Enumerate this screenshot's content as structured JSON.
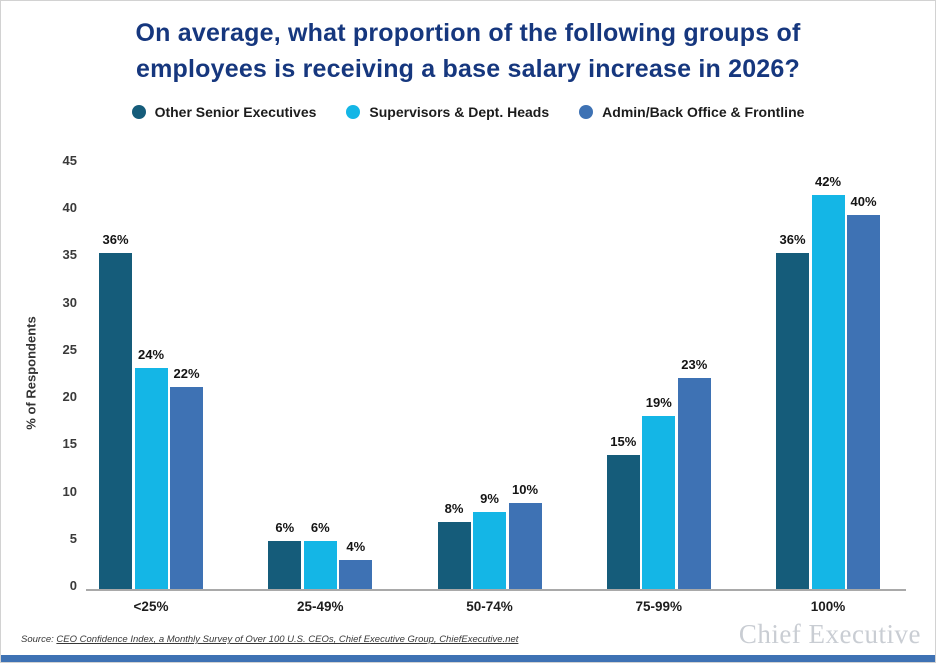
{
  "page": {
    "title_line1": "On average, what proportion of the following groups of",
    "title_line2": "employees is receiving a base salary increase in 2026?"
  },
  "chart_data": {
    "type": "bar",
    "title": "On average, what proportion of the following groups of employees is receiving a base salary increase in 2026?",
    "categories": [
      "<25%",
      "25-49%",
      "50-74%",
      "75-99%",
      "100%"
    ],
    "series": [
      {
        "name": "Other Senior Executives",
        "color": "#155c7a",
        "values": [
          36,
          6,
          8,
          15,
          36
        ]
      },
      {
        "name": "Supervisors & Dept. Heads",
        "color": "#14b6e6",
        "values": [
          24,
          6,
          9,
          19,
          42
        ]
      },
      {
        "name": "Admin/Back Office & Frontline",
        "color": "#3e72b4",
        "values": [
          22,
          4,
          10,
          23,
          40
        ]
      }
    ],
    "ylabel": "% of Respondents",
    "xlabel": "",
    "y_ticks": [
      0,
      5,
      10,
      15,
      20,
      25,
      30,
      35,
      40,
      45
    ],
    "ylim": [
      0,
      45
    ],
    "grid": false,
    "legend_position": "top",
    "value_suffix": "%",
    "bar_render_offset": -1
  },
  "footer": {
    "source_prefix": "Source: ",
    "source_link": "CEO Confidence Index, a Monthly Survey of Over 100 U.S. CEOs, Chief Executive Group, ChiefExecutive.net",
    "logo_text": "Chief Executive"
  },
  "colors": {
    "title": "#16377e",
    "data_label": "#141414",
    "tick_label": "#3a3a3a",
    "axis_line": "#a9a9a9",
    "logo": "#c9cdd3",
    "footer_bar": "#3e72b4",
    "background": "#ffffff"
  }
}
